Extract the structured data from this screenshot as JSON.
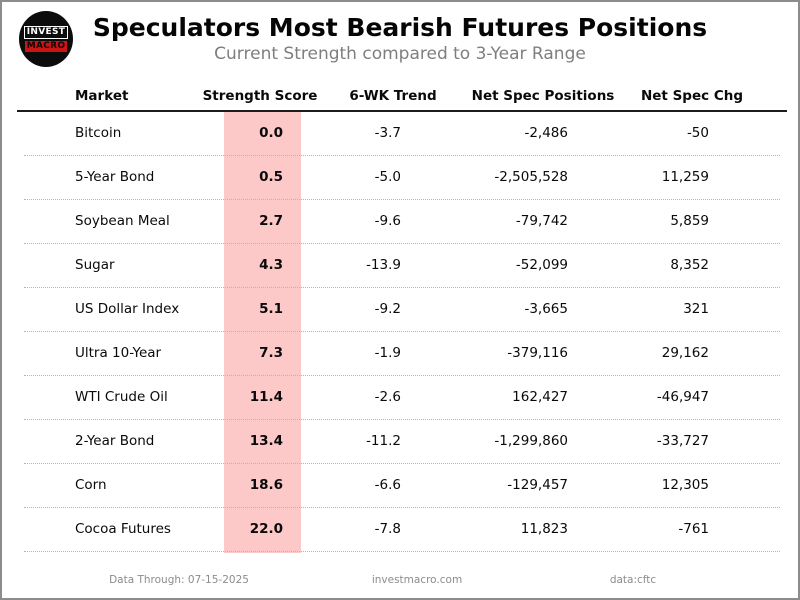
{
  "header": {
    "title": "Speculators Most Bearish Futures Positions",
    "subtitle": "Current Strength compared to 3-Year Range",
    "logo": {
      "line1": "INVEST",
      "line2": "MACRO"
    }
  },
  "table": {
    "columns": [
      "Market",
      "Strength Score",
      "6-WK Trend",
      "Net Spec Positions",
      "Net Spec Chg"
    ],
    "rows": [
      {
        "market": "Bitcoin",
        "score": "0.0",
        "trend": "-3.7",
        "positions": "-2,486",
        "change": "-50"
      },
      {
        "market": "5-Year Bond",
        "score": "0.5",
        "trend": "-5.0",
        "positions": "-2,505,528",
        "change": "11,259"
      },
      {
        "market": "Soybean Meal",
        "score": "2.7",
        "trend": "-9.6",
        "positions": "-79,742",
        "change": "5,859"
      },
      {
        "market": "Sugar",
        "score": "4.3",
        "trend": "-13.9",
        "positions": "-52,099",
        "change": "8,352"
      },
      {
        "market": "US Dollar Index",
        "score": "5.1",
        "trend": "-9.2",
        "positions": "-3,665",
        "change": "321"
      },
      {
        "market": "Ultra 10-Year",
        "score": "7.3",
        "trend": "-1.9",
        "positions": "-379,116",
        "change": "29,162"
      },
      {
        "market": "WTI Crude Oil",
        "score": "11.4",
        "trend": "-2.6",
        "positions": "162,427",
        "change": "-46,947"
      },
      {
        "market": "2-Year Bond",
        "score": "13.4",
        "trend": "-11.2",
        "positions": "-1,299,860",
        "change": "-33,727"
      },
      {
        "market": "Corn",
        "score": "18.6",
        "trend": "-6.6",
        "positions": "-129,457",
        "change": "12,305"
      },
      {
        "market": "Cocoa Futures",
        "score": "22.0",
        "trend": "-7.8",
        "positions": "11,823",
        "change": "-761"
      }
    ]
  },
  "footer": {
    "left": "Data Through: 07-15-2025",
    "center": "investmacro.com",
    "right": "data:cftc"
  },
  "colors": {
    "score_band": "#fdc8c8",
    "logo_red": "#cc1414",
    "subtitle_gray": "#7e7e7e",
    "footer_gray": "#8c8c8c"
  },
  "chart_data": {
    "type": "table",
    "title": "Speculators Most Bearish Futures Positions",
    "subtitle": "Current Strength compared to 3-Year Range",
    "columns": [
      "Market",
      "Strength Score",
      "6-WK Trend",
      "Net Spec Positions",
      "Net Spec Chg"
    ],
    "rows": [
      [
        "Bitcoin",
        0.0,
        -3.7,
        -2486,
        -50
      ],
      [
        "5-Year Bond",
        0.5,
        -5.0,
        -2505528,
        11259
      ],
      [
        "Soybean Meal",
        2.7,
        -9.6,
        -79742,
        5859
      ],
      [
        "Sugar",
        4.3,
        -13.9,
        -52099,
        8352
      ],
      [
        "US Dollar Index",
        5.1,
        -9.2,
        -3665,
        321
      ],
      [
        "Ultra 10-Year",
        7.3,
        -1.9,
        -379116,
        29162
      ],
      [
        "WTI Crude Oil",
        11.4,
        -2.6,
        162427,
        -46947
      ],
      [
        "2-Year Bond",
        13.4,
        -11.2,
        -1299860,
        -33727
      ],
      [
        "Corn",
        18.6,
        -6.6,
        -129457,
        12305
      ],
      [
        "Cocoa Futures",
        22.0,
        -7.8,
        11823,
        -761
      ]
    ],
    "layout_hints": {
      "strength_score_column_highlight": "#fdc8c8",
      "sorted_by": "Strength Score ascending",
      "grid": "dotted row separators, solid rule under header"
    }
  }
}
